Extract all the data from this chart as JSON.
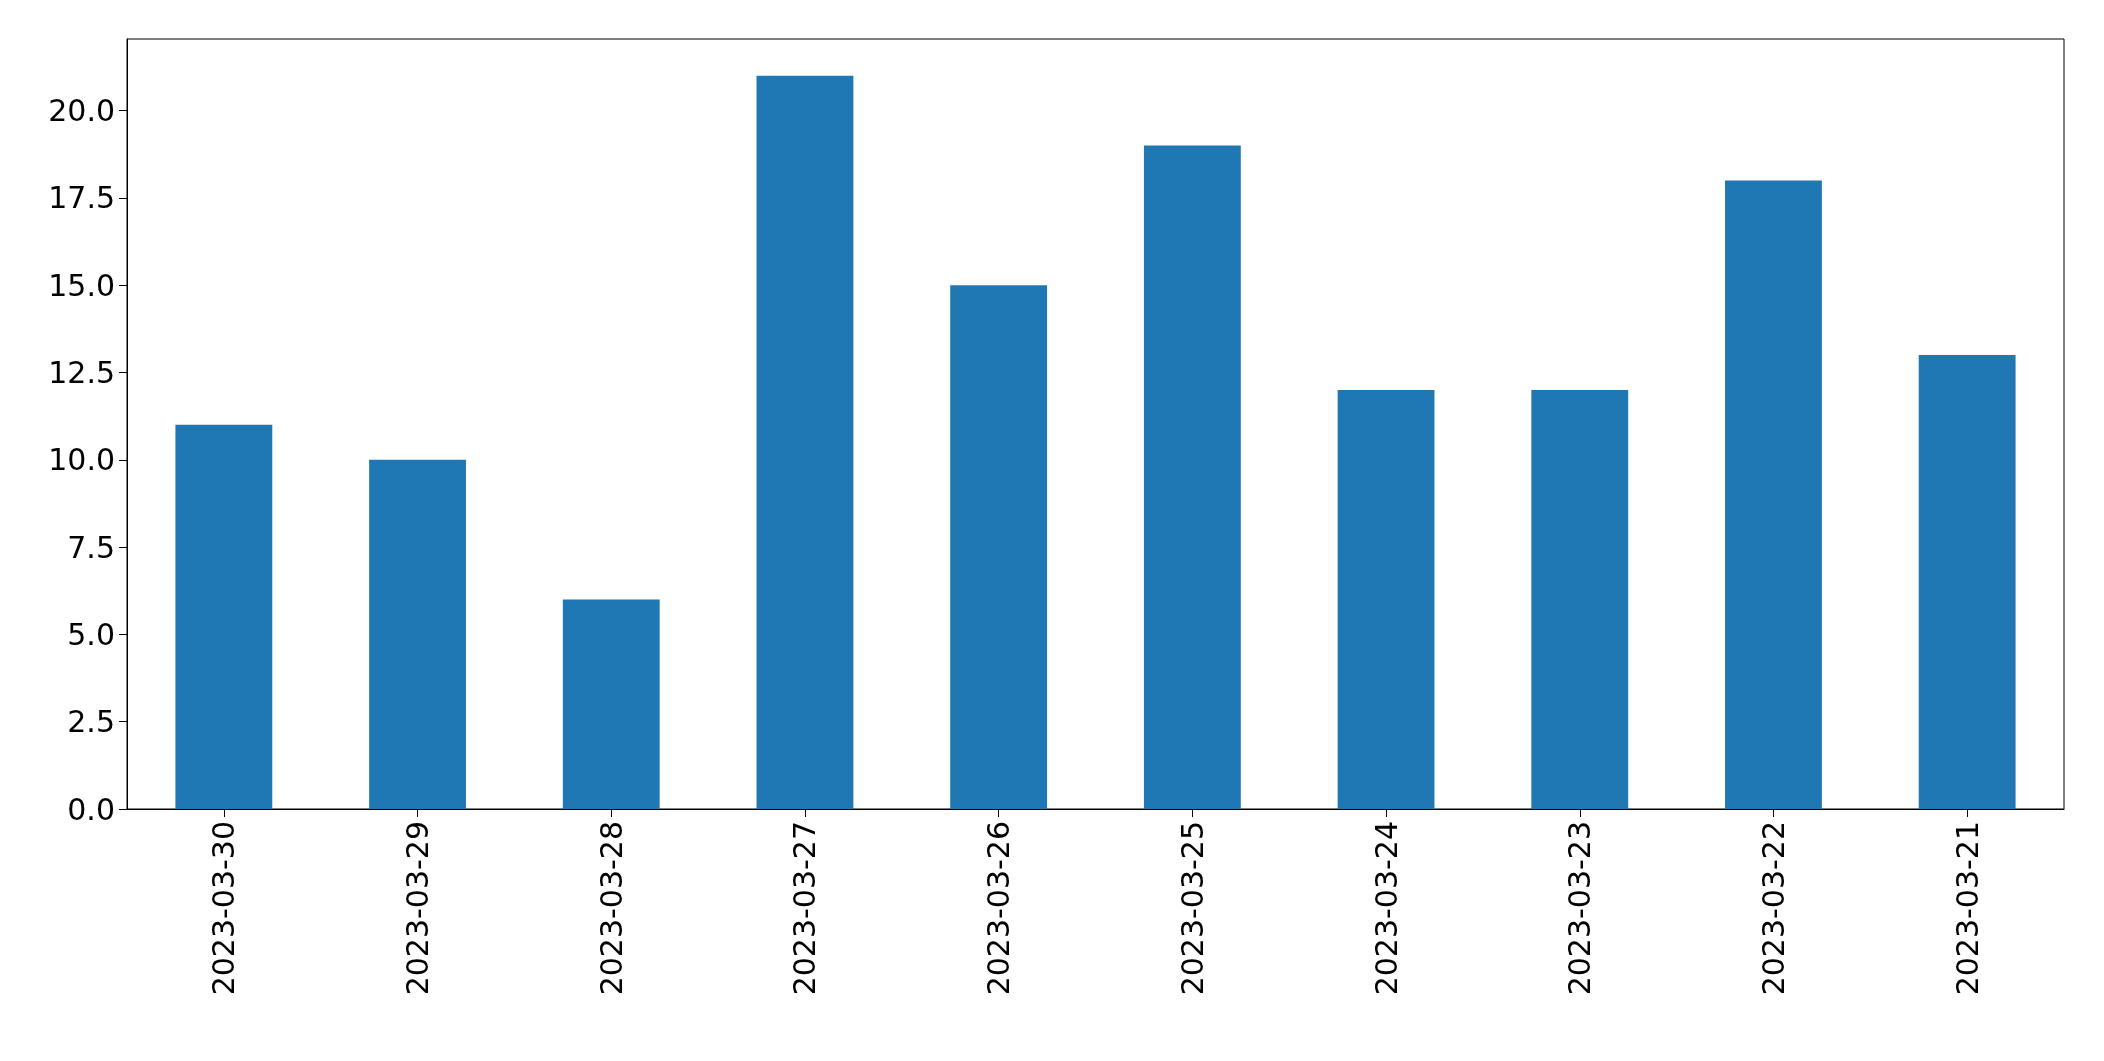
{
  "chart_data": {
    "type": "bar",
    "categories": [
      "2023-03-30",
      "2023-03-29",
      "2023-03-28",
      "2023-03-27",
      "2023-03-26",
      "2023-03-25",
      "2023-03-24",
      "2023-03-23",
      "2023-03-22",
      "2023-03-21"
    ],
    "values": [
      11,
      10,
      6,
      21,
      15,
      19,
      12,
      12,
      18,
      13
    ],
    "color": "#1f77b4",
    "ylim": [
      0,
      22.05
    ],
    "yticks": [
      {
        "value": 0,
        "label": "0.0"
      },
      {
        "value": 2.5,
        "label": "2.5"
      },
      {
        "value": 5,
        "label": "5.0"
      },
      {
        "value": 7.5,
        "label": "7.5"
      },
      {
        "value": 10,
        "label": "10.0"
      },
      {
        "value": 12.5,
        "label": "12.5"
      },
      {
        "value": 15,
        "label": "15.0"
      },
      {
        "value": 17.5,
        "label": "17.5"
      },
      {
        "value": 20,
        "label": "20.0"
      }
    ],
    "grid": false
  }
}
